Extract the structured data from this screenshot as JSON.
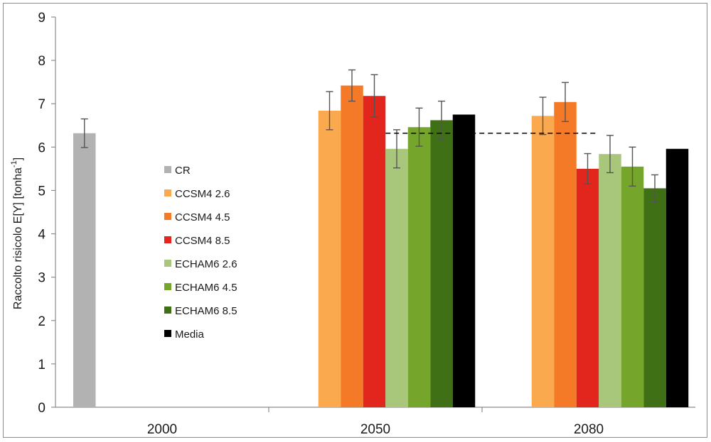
{
  "chart_data": {
    "type": "bar",
    "ylabel": "Raccolto risicolo E[Y] [tonha",
    "ylabel_sup": "-1",
    "ylabel_suffix": "]",
    "ylim": [
      0,
      9
    ],
    "yticks": [
      0,
      1,
      2,
      3,
      4,
      5,
      6,
      7,
      8,
      9
    ],
    "categories": [
      "2000",
      "2050",
      "2080"
    ],
    "grid": false,
    "legend_position": "left-center",
    "reference_line": {
      "value": 6.32,
      "style": "dashed",
      "from_category": "2050",
      "to_category": "2080"
    },
    "series": [
      {
        "name": "CR",
        "color": "#b2b2b2",
        "values": [
          6.32,
          null,
          null
        ],
        "errors": [
          0.33,
          null,
          null
        ]
      },
      {
        "name": "CCSM4 2.6",
        "color": "#fba94f",
        "values": [
          null,
          6.84,
          6.72
        ],
        "errors": [
          null,
          0.44,
          0.43
        ]
      },
      {
        "name": "CCSM4 4.5",
        "color": "#f57a27",
        "values": [
          null,
          7.42,
          7.04
        ],
        "errors": [
          null,
          0.36,
          0.45
        ]
      },
      {
        "name": "CCSM4 8.5",
        "color": "#e2261d",
        "values": [
          null,
          7.18,
          5.5
        ],
        "errors": [
          null,
          0.49,
          0.35
        ]
      },
      {
        "name": "ECHAM6 2.6",
        "color": "#a9c77a",
        "values": [
          null,
          5.96,
          5.84
        ],
        "errors": [
          null,
          0.44,
          0.43
        ]
      },
      {
        "name": "ECHAM6 4.5",
        "color": "#76a52b",
        "values": [
          null,
          6.46,
          5.55
        ],
        "errors": [
          null,
          0.44,
          0.45
        ]
      },
      {
        "name": "ECHAM6 8.5",
        "color": "#3f7016",
        "values": [
          null,
          6.62,
          5.05
        ],
        "errors": [
          null,
          0.44,
          0.31
        ]
      },
      {
        "name": "Media",
        "color": "#000000",
        "values": [
          null,
          6.75,
          5.96
        ],
        "errors": [
          null,
          null,
          null
        ]
      }
    ]
  }
}
